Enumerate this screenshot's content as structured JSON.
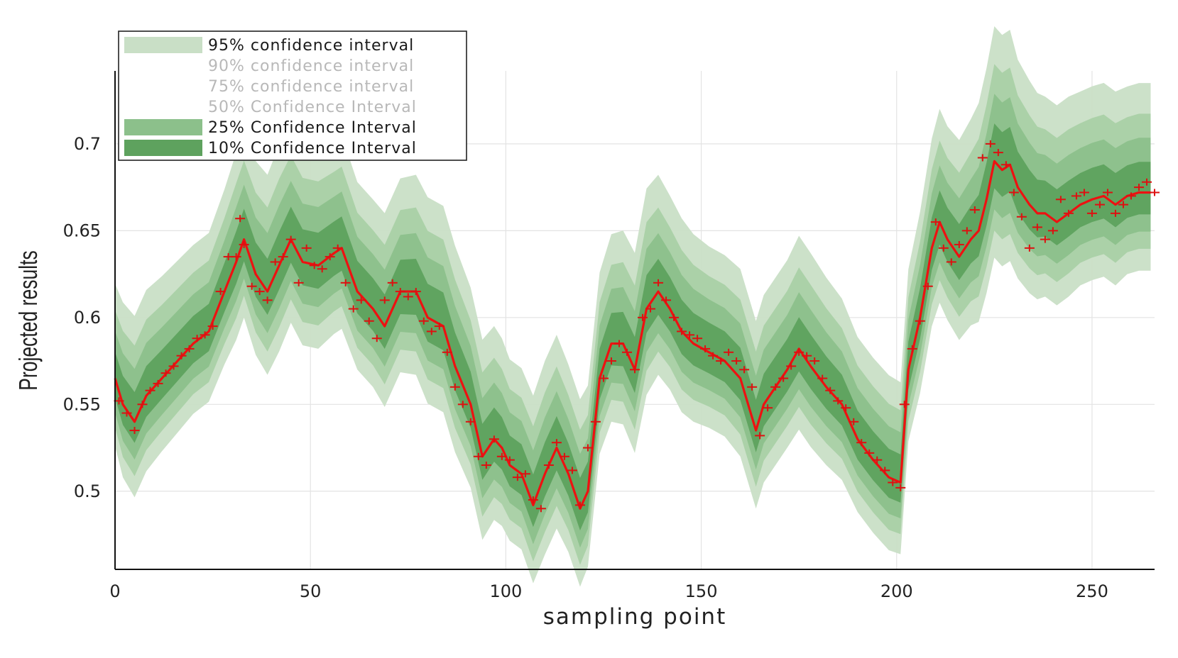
{
  "chart_data": {
    "type": "line",
    "xlabel": "sampling point",
    "ylabel": "Projected results",
    "xlim": [
      0,
      266
    ],
    "ylim": [
      0.455,
      0.742
    ],
    "xticks": [
      0,
      50,
      100,
      150,
      200,
      250
    ],
    "yticks": [
      0.5,
      0.55,
      0.6,
      0.65,
      0.7
    ],
    "xtick_labels": [
      "0",
      "50",
      "100",
      "150",
      "200",
      "250"
    ],
    "ytick_labels": [
      "0.5",
      "0.55",
      "0.6",
      "0.65",
      "0.7"
    ],
    "grid": true,
    "legend_position": "top-left",
    "colors": {
      "band95": "#c9dfc6",
      "band25": "#8cc08b",
      "band10": "#5ea25e",
      "median": "#ee1111",
      "marker": "#dd1111",
      "legend_dim_text": "#b8b8b8",
      "legend_text": "#1a1a1a"
    },
    "legend": [
      {
        "label": "95% confidence interval",
        "swatch": "band95",
        "dim": false
      },
      {
        "label": "90% confidence interval",
        "swatch": null,
        "dim": true
      },
      {
        "label": "75% confidence interval",
        "swatch": null,
        "dim": true
      },
      {
        "label": "50% Confidence Interval",
        "swatch": null,
        "dim": true
      },
      {
        "label": "25% Confidence Interval",
        "swatch": "band25",
        "dim": false
      },
      {
        "label": "10% Confidence Interval",
        "swatch": "band10",
        "dim": false
      }
    ],
    "series": [
      {
        "role": "median",
        "x": [
          0,
          2,
          5,
          8,
          12,
          16,
          20,
          24,
          28,
          31,
          33,
          36,
          39,
          42,
          45,
          48,
          52,
          56,
          58,
          62,
          66,
          69,
          73,
          77,
          80,
          84,
          87,
          91,
          94,
          97,
          99,
          101,
          104,
          107,
          110,
          113,
          116,
          119,
          121,
          124,
          127,
          130,
          133,
          136,
          139,
          142,
          145,
          148,
          152,
          156,
          160,
          164,
          166,
          169,
          172,
          175,
          178,
          182,
          186,
          190,
          194,
          198,
          201,
          203,
          206,
          209,
          211,
          213,
          216,
          219,
          221,
          223,
          225,
          227,
          229,
          231,
          234,
          236,
          238,
          241,
          244,
          247,
          250,
          253,
          256,
          259,
          262,
          265
        ],
        "y": [
          0.565,
          0.55,
          0.54,
          0.555,
          0.565,
          0.575,
          0.585,
          0.592,
          0.615,
          0.632,
          0.645,
          0.625,
          0.615,
          0.63,
          0.645,
          0.632,
          0.63,
          0.637,
          0.64,
          0.615,
          0.605,
          0.595,
          0.615,
          0.615,
          0.6,
          0.595,
          0.572,
          0.55,
          0.52,
          0.53,
          0.525,
          0.515,
          0.51,
          0.492,
          0.51,
          0.525,
          0.51,
          0.49,
          0.5,
          0.565,
          0.585,
          0.585,
          0.57,
          0.605,
          0.615,
          0.605,
          0.592,
          0.585,
          0.58,
          0.575,
          0.565,
          0.535,
          0.55,
          0.56,
          0.57,
          0.582,
          0.572,
          0.56,
          0.55,
          0.53,
          0.518,
          0.508,
          0.505,
          0.57,
          0.6,
          0.64,
          0.655,
          0.645,
          0.635,
          0.645,
          0.65,
          0.668,
          0.69,
          0.685,
          0.688,
          0.675,
          0.665,
          0.66,
          0.66,
          0.655,
          0.66,
          0.665,
          0.668,
          0.67,
          0.665,
          0.67,
          0.672,
          0.672
        ]
      },
      {
        "role": "samples",
        "x": [
          1,
          3,
          5,
          7,
          9,
          11,
          13,
          15,
          17,
          19,
          21,
          23,
          25,
          27,
          29,
          31,
          32,
          33,
          35,
          37,
          39,
          41,
          43,
          45,
          47,
          49,
          51,
          53,
          55,
          57,
          59,
          61,
          63,
          65,
          67,
          69,
          71,
          73,
          75,
          77,
          79,
          81,
          83,
          85,
          87,
          89,
          91,
          93,
          95,
          97,
          99,
          101,
          103,
          105,
          107,
          109,
          111,
          113,
          115,
          117,
          119,
          121,
          123,
          125,
          127,
          129,
          131,
          133,
          135,
          137,
          139,
          141,
          143,
          145,
          147,
          149,
          151,
          153,
          155,
          157,
          159,
          161,
          163,
          165,
          167,
          169,
          171,
          173,
          175,
          177,
          179,
          181,
          183,
          185,
          187,
          189,
          191,
          193,
          195,
          197,
          199,
          201,
          202,
          204,
          206,
          208,
          210,
          212,
          214,
          216,
          218,
          220,
          222,
          224,
          226,
          228,
          230,
          232,
          234,
          236,
          238,
          240,
          242,
          244,
          246,
          248,
          250,
          252,
          254,
          256,
          258,
          260,
          262,
          264,
          266
        ],
        "y": [
          0.552,
          0.545,
          0.535,
          0.55,
          0.558,
          0.562,
          0.568,
          0.572,
          0.578,
          0.582,
          0.588,
          0.59,
          0.595,
          0.615,
          0.635,
          0.635,
          0.657,
          0.642,
          0.618,
          0.615,
          0.61,
          0.632,
          0.635,
          0.645,
          0.62,
          0.64,
          0.63,
          0.628,
          0.635,
          0.64,
          0.62,
          0.605,
          0.61,
          0.598,
          0.588,
          0.61,
          0.62,
          0.615,
          0.612,
          0.615,
          0.598,
          0.592,
          0.595,
          0.58,
          0.56,
          0.55,
          0.54,
          0.52,
          0.515,
          0.53,
          0.52,
          0.518,
          0.508,
          0.51,
          0.495,
          0.49,
          0.515,
          0.528,
          0.52,
          0.512,
          0.492,
          0.525,
          0.54,
          0.565,
          0.575,
          0.585,
          0.58,
          0.57,
          0.6,
          0.605,
          0.62,
          0.61,
          0.6,
          0.592,
          0.59,
          0.588,
          0.582,
          0.578,
          0.575,
          0.58,
          0.575,
          0.57,
          0.56,
          0.532,
          0.548,
          0.56,
          0.565,
          0.572,
          0.58,
          0.578,
          0.575,
          0.565,
          0.558,
          0.552,
          0.548,
          0.54,
          0.528,
          0.522,
          0.518,
          0.512,
          0.505,
          0.502,
          0.55,
          0.582,
          0.598,
          0.618,
          0.655,
          0.64,
          0.632,
          0.642,
          0.65,
          0.662,
          0.692,
          0.7,
          0.695,
          0.688,
          0.672,
          0.658,
          0.64,
          0.652,
          0.645,
          0.65,
          0.668,
          0.66,
          0.67,
          0.672,
          0.66,
          0.665,
          0.672,
          0.66,
          0.665,
          0.67,
          0.675,
          0.678,
          0.672
        ]
      }
    ],
    "bands": [
      {
        "level": "95%",
        "half_width": [
          0.052,
          0.056,
          0.058,
          0.058,
          0.056,
          0.055,
          0.054,
          0.054,
          0.056,
          0.06,
          0.06,
          0.062,
          0.064,
          0.066,
          0.064,
          0.064,
          0.064,
          0.062,
          0.062,
          0.06,
          0.06,
          0.062,
          0.062,
          0.064,
          0.066,
          0.066,
          0.066,
          0.064,
          0.064,
          0.062,
          0.06,
          0.058,
          0.058,
          0.06,
          0.062,
          0.062,
          0.06,
          0.06,
          0.058,
          0.058,
          0.06,
          0.062,
          0.064,
          0.066,
          0.064,
          0.062,
          0.062,
          0.06,
          0.058,
          0.058,
          0.06,
          0.06,
          0.06,
          0.06,
          0.06,
          0.062,
          0.062,
          0.06,
          0.058,
          0.056,
          0.056,
          0.056,
          0.055,
          0.055,
          0.058,
          0.06,
          0.062,
          0.062,
          0.064,
          0.066,
          0.07,
          0.072,
          0.074,
          0.074,
          0.074,
          0.07,
          0.068,
          0.066,
          0.064,
          0.064,
          0.064,
          0.062,
          0.062,
          0.062,
          0.062,
          0.06,
          0.06,
          0.06
        ]
      }
    ]
  }
}
